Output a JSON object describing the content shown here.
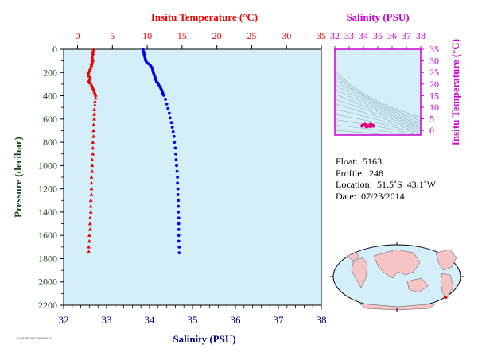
{
  "chart_data": [
    {
      "type": "scatter",
      "top_axis": {
        "label": "Insitu Temperature (°C)",
        "range": [
          -2,
          35
        ],
        "ticks": [
          0,
          5,
          10,
          15,
          20,
          25,
          30,
          35
        ],
        "color": "#ee0000"
      },
      "bottom_axis": {
        "label": "Salinity (PSU)",
        "range": [
          32,
          38
        ],
        "ticks": [
          32,
          33,
          34,
          35,
          36,
          37,
          38
        ],
        "color": "#000080"
      },
      "left_axis": {
        "label": "Pressure (decibar)",
        "range": [
          0,
          2200
        ],
        "ticks": [
          0,
          200,
          400,
          600,
          800,
          1000,
          1200,
          1400,
          1600,
          1800,
          2000,
          2200
        ],
        "inverted": true,
        "color": "#1a4a1a"
      },
      "background": "#d4eefa",
      "series": [
        {
          "variable": "temperature",
          "axis": "top",
          "marker": "triangle",
          "color": "#ee0000",
          "points": [
            [
              2.3,
              5
            ],
            [
              2.2,
              20
            ],
            [
              2.2,
              35
            ],
            [
              2.2,
              50
            ],
            [
              2.1,
              65
            ],
            [
              2.1,
              80
            ],
            [
              2.2,
              95
            ],
            [
              2.1,
              110
            ],
            [
              2.0,
              125
            ],
            [
              2.0,
              140
            ],
            [
              1.9,
              155
            ],
            [
              1.8,
              170
            ],
            [
              1.7,
              185
            ],
            [
              1.6,
              200
            ],
            [
              1.5,
              215
            ],
            [
              1.6,
              230
            ],
            [
              1.8,
              245
            ],
            [
              1.7,
              260
            ],
            [
              1.6,
              275
            ],
            [
              1.8,
              290
            ],
            [
              2.0,
              305
            ],
            [
              2.1,
              320
            ],
            [
              2.2,
              335
            ],
            [
              2.3,
              350
            ],
            [
              2.4,
              365
            ],
            [
              2.5,
              380
            ],
            [
              2.6,
              395
            ],
            [
              2.6,
              420
            ],
            [
              2.5,
              450
            ],
            [
              2.5,
              480
            ],
            [
              2.4,
              520
            ],
            [
              2.4,
              560
            ],
            [
              2.4,
              600
            ],
            [
              2.3,
              650
            ],
            [
              2.3,
              700
            ],
            [
              2.3,
              750
            ],
            [
              2.2,
              800
            ],
            [
              2.2,
              850
            ],
            [
              2.2,
              900
            ],
            [
              2.1,
              950
            ],
            [
              2.1,
              1000
            ],
            [
              2.1,
              1050
            ],
            [
              2.0,
              1100
            ],
            [
              2.0,
              1150
            ],
            [
              2.0,
              1200
            ],
            [
              2.0,
              1250
            ],
            [
              1.9,
              1300
            ],
            [
              1.9,
              1350
            ],
            [
              1.9,
              1400
            ],
            [
              1.8,
              1450
            ],
            [
              1.8,
              1500
            ],
            [
              1.8,
              1550
            ],
            [
              1.7,
              1600
            ],
            [
              1.7,
              1650
            ],
            [
              1.6,
              1700
            ],
            [
              1.6,
              1740
            ]
          ]
        },
        {
          "variable": "salinity",
          "axis": "bottom",
          "marker": "circle",
          "color": "#0000ee",
          "points": [
            [
              33.85,
              5
            ],
            [
              33.86,
              20
            ],
            [
              33.87,
              35
            ],
            [
              33.88,
              50
            ],
            [
              33.89,
              65
            ],
            [
              33.9,
              80
            ],
            [
              33.91,
              95
            ],
            [
              33.93,
              110
            ],
            [
              33.98,
              125
            ],
            [
              34.02,
              140
            ],
            [
              34.05,
              155
            ],
            [
              34.07,
              170
            ],
            [
              34.08,
              185
            ],
            [
              34.09,
              200
            ],
            [
              34.1,
              215
            ],
            [
              34.12,
              230
            ],
            [
              34.13,
              245
            ],
            [
              34.14,
              260
            ],
            [
              34.16,
              275
            ],
            [
              34.19,
              290
            ],
            [
              34.21,
              305
            ],
            [
              34.24,
              320
            ],
            [
              34.26,
              335
            ],
            [
              34.28,
              350
            ],
            [
              34.3,
              365
            ],
            [
              34.31,
              380
            ],
            [
              34.33,
              395
            ],
            [
              34.37,
              430
            ],
            [
              34.4,
              470
            ],
            [
              34.43,
              510
            ],
            [
              34.46,
              550
            ],
            [
              34.48,
              590
            ],
            [
              34.51,
              630
            ],
            [
              34.53,
              670
            ],
            [
              34.55,
              710
            ],
            [
              34.57,
              750
            ],
            [
              34.58,
              800
            ],
            [
              34.6,
              850
            ],
            [
              34.61,
              900
            ],
            [
              34.62,
              950
            ],
            [
              34.63,
              1000
            ],
            [
              34.64,
              1050
            ],
            [
              34.65,
              1100
            ],
            [
              34.65,
              1150
            ],
            [
              34.66,
              1200
            ],
            [
              34.66,
              1250
            ],
            [
              34.67,
              1300
            ],
            [
              34.67,
              1350
            ],
            [
              34.67,
              1400
            ],
            [
              34.68,
              1450
            ],
            [
              34.68,
              1500
            ],
            [
              34.68,
              1550
            ],
            [
              34.68,
              1600
            ],
            [
              34.68,
              1650
            ],
            [
              34.69,
              1700
            ],
            [
              34.69,
              1750
            ]
          ]
        }
      ]
    },
    {
      "type": "scatter",
      "top_axis": {
        "label": "Salinity (PSU)",
        "range": [
          32,
          38
        ],
        "ticks": [
          32,
          33,
          34,
          35,
          36,
          37,
          38
        ],
        "color": "#cc00cc"
      },
      "right_axis": {
        "label": "Insitu Temperature (°C)",
        "range": [
          -2,
          35
        ],
        "ticks": [
          0,
          5,
          10,
          15,
          20,
          25,
          30,
          35
        ],
        "color": "#cc00cc"
      },
      "background": "#d4eefa",
      "grid": "density contours",
      "points": [
        [
          33.9,
          2.0
        ],
        [
          34.0,
          2.4
        ],
        [
          34.1,
          2.6
        ],
        [
          34.2,
          2.3
        ],
        [
          34.3,
          1.9
        ],
        [
          34.4,
          2.2
        ],
        [
          34.5,
          2.6
        ],
        [
          34.6,
          2.4
        ],
        [
          34.7,
          2.0
        ],
        [
          34.2,
          1.7
        ],
        [
          34.5,
          1.8
        ]
      ],
      "point_color": "#e0007a"
    }
  ],
  "float_info": {
    "float": "Float:  5163",
    "profile": "Profile:  248",
    "location": "Location:  51.5˚S  43.1˚W",
    "date": "Date:  07/23/2014"
  },
  "map": {
    "ocean_color": "#d4eefa",
    "land_color": "#f6c4c4",
    "marker": "red-dot"
  },
  "credit": "AOML/NOAA  03/08/2016"
}
